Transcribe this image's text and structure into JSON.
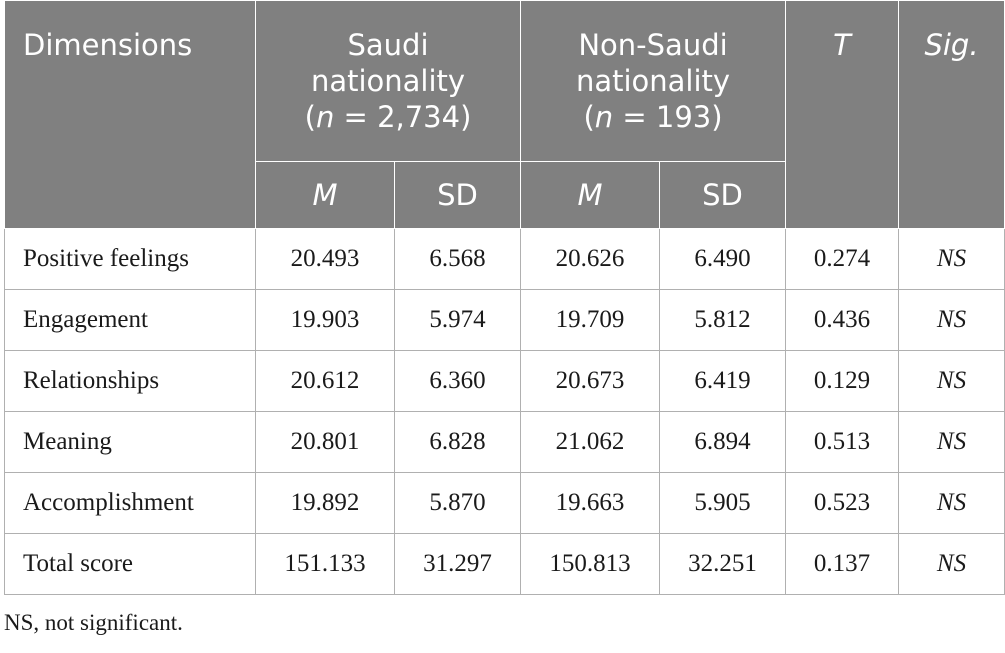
{
  "header": {
    "dimensions": "Dimensions",
    "saudi_line1": "Saudi",
    "saudi_line2": "nationality",
    "saudi_n_open": "(",
    "saudi_n_var": "n",
    "saudi_n_rest": " = 2,734)",
    "nonsaudi_line1": "Non-Saudi",
    "nonsaudi_line2": "nationality",
    "nonsaudi_n_open": "(",
    "nonsaudi_n_var": "n",
    "nonsaudi_n_rest": " = 193)",
    "t": "T",
    "sig": "Sig.",
    "m": "M",
    "sd": "SD"
  },
  "rows": [
    {
      "dim": "Positive feelings",
      "sm": "20.493",
      "ssd": "6.568",
      "nm": "20.626",
      "nsd": "6.490",
      "t": "0.274",
      "sig": "NS"
    },
    {
      "dim": "Engagement",
      "sm": "19.903",
      "ssd": "5.974",
      "nm": "19.709",
      "nsd": "5.812",
      "t": "0.436",
      "sig": "NS"
    },
    {
      "dim": "Relationships",
      "sm": "20.612",
      "ssd": "6.360",
      "nm": "20.673",
      "nsd": "6.419",
      "t": "0.129",
      "sig": "NS"
    },
    {
      "dim": "Meaning",
      "sm": "20.801",
      "ssd": "6.828",
      "nm": "21.062",
      "nsd": "6.894",
      "t": "0.513",
      "sig": "NS"
    },
    {
      "dim": "Accomplishment",
      "sm": "19.892",
      "ssd": "5.870",
      "nm": "19.663",
      "nsd": "5.905",
      "t": "0.523",
      "sig": "NS"
    },
    {
      "dim": "Total score",
      "sm": "151.133",
      "ssd": "31.297",
      "nm": "150.813",
      "nsd": "32.251",
      "t": "0.137",
      "sig": "NS"
    }
  ],
  "footnote": "NS, not significant."
}
